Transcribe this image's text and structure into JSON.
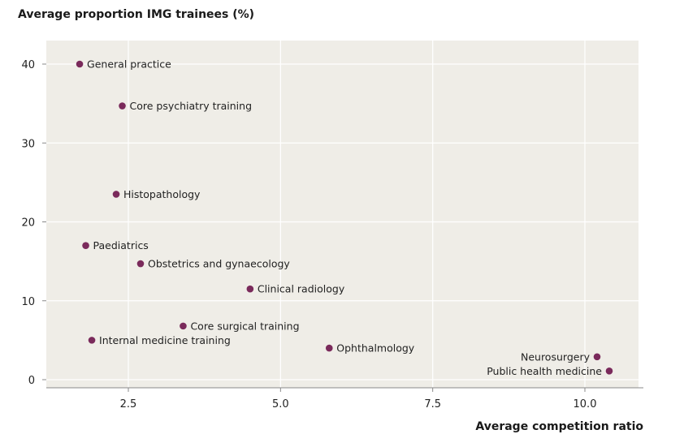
{
  "chart_data": {
    "type": "scatter",
    "title": "",
    "ylabel": "Average proportion IMG trainees (%)",
    "xlabel": "Average competition ratio",
    "xlim": [
      1.0,
      11.0
    ],
    "ylim": [
      -1.0,
      44.0
    ],
    "xticks": [
      2.5,
      5.0,
      7.5,
      10.0
    ],
    "xtick_labels": [
      "2.5",
      "5.0",
      "7.5",
      "10.0"
    ],
    "yticks": [
      0,
      10,
      20,
      30,
      40
    ],
    "ytick_labels": [
      "0",
      "10",
      "20",
      "30",
      "40"
    ],
    "grid": true,
    "legend": "none",
    "colors": {
      "point": "#7a2a5b",
      "background": "#efede7",
      "grid": "#ffffff",
      "axis": "#888888"
    },
    "points": [
      {
        "label": "General practice",
        "x": 1.7,
        "y": 40.0,
        "label_side": "right"
      },
      {
        "label": "Core psychiatry training",
        "x": 2.4,
        "y": 34.7,
        "label_side": "right"
      },
      {
        "label": "Histopathology",
        "x": 2.3,
        "y": 23.5,
        "label_side": "right"
      },
      {
        "label": "Paediatrics",
        "x": 1.8,
        "y": 17.0,
        "label_side": "right"
      },
      {
        "label": "Obstetrics and gynaecology",
        "x": 2.7,
        "y": 14.7,
        "label_side": "right"
      },
      {
        "label": "Clinical radiology",
        "x": 4.5,
        "y": 11.5,
        "label_side": "right"
      },
      {
        "label": "Core surgical training",
        "x": 3.4,
        "y": 6.8,
        "label_side": "right"
      },
      {
        "label": "Internal medicine training",
        "x": 1.9,
        "y": 5.0,
        "label_side": "right"
      },
      {
        "label": "Ophthalmology",
        "x": 5.8,
        "y": 4.0,
        "label_side": "right"
      },
      {
        "label": "Neurosurgery",
        "x": 10.2,
        "y": 2.9,
        "label_side": "left"
      },
      {
        "label": "Public health medicine",
        "x": 10.4,
        "y": 1.1,
        "label_side": "left"
      }
    ]
  }
}
